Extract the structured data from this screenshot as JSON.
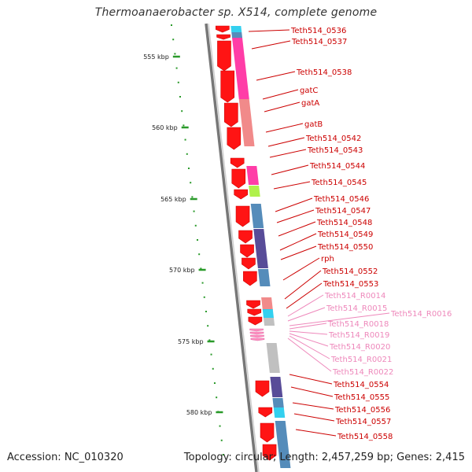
{
  "header": {
    "title": "Thermoanaerobacter sp. X514, complete genome"
  },
  "footer": {
    "accession": "Accession: NC_010320",
    "topology": "Topology: circular; Length: 2,457,259 bp; Genes: 2,415"
  },
  "colors": {
    "backbone": "#999999",
    "cds_arrow": "#ff1414",
    "rna_arrow": "#ff8fc0",
    "gene_label": "#cc0000",
    "rna_label": "#ee88bb",
    "kbp_tick": "#2a9a2a",
    "cog_magenta": "#ff2da0",
    "cog_salmon": "#f08080",
    "cog_cyan": "#22ccee",
    "cog_lime": "#a8f03c",
    "cog_steelblue": "#4682b4",
    "cog_darkslate": "#4a3d8f",
    "cog_grey": "#bbbbbb"
  },
  "scale_labels": [
    "555 kbp",
    "560 kbp",
    "565 kbp",
    "570 kbp",
    "575 kbp",
    "580 kbp"
  ],
  "genes": [
    {
      "name": "Teth514_0536",
      "kind": "cds"
    },
    {
      "name": "Teth514_0537",
      "kind": "cds"
    },
    {
      "name": "Teth514_0538",
      "kind": "cds"
    },
    {
      "name": "gatC",
      "kind": "cds"
    },
    {
      "name": "gatA",
      "kind": "cds"
    },
    {
      "name": "gatB",
      "kind": "cds"
    },
    {
      "name": "Teth514_0542",
      "kind": "cds"
    },
    {
      "name": "Teth514_0543",
      "kind": "cds"
    },
    {
      "name": "Teth514_0544",
      "kind": "cds"
    },
    {
      "name": "Teth514_0545",
      "kind": "cds"
    },
    {
      "name": "Teth514_0546",
      "kind": "cds"
    },
    {
      "name": "Teth514_0547",
      "kind": "cds"
    },
    {
      "name": "Teth514_0548",
      "kind": "cds"
    },
    {
      "name": "Teth514_0549",
      "kind": "cds"
    },
    {
      "name": "Teth514_0550",
      "kind": "cds"
    },
    {
      "name": "rph",
      "kind": "cds"
    },
    {
      "name": "Teth514_0552",
      "kind": "cds"
    },
    {
      "name": "Teth514_0553",
      "kind": "cds"
    },
    {
      "name": "Teth514_R0014",
      "kind": "rna"
    },
    {
      "name": "Teth514_R0015",
      "kind": "rna"
    },
    {
      "name": "Teth514_R0016",
      "kind": "rna"
    },
    {
      "name": "Teth514_R0018",
      "kind": "rna"
    },
    {
      "name": "Teth514_R0019",
      "kind": "rna"
    },
    {
      "name": "Teth514_R0020",
      "kind": "rna"
    },
    {
      "name": "Teth514_R0021",
      "kind": "rna"
    },
    {
      "name": "Teth514_R0022",
      "kind": "rna"
    },
    {
      "name": "Teth514_0554",
      "kind": "cds"
    },
    {
      "name": "Teth514_0555",
      "kind": "cds"
    },
    {
      "name": "Teth514_0556",
      "kind": "cds"
    },
    {
      "name": "Teth514_0557",
      "kind": "cds"
    },
    {
      "name": "Teth514_0558",
      "kind": "cds"
    }
  ]
}
